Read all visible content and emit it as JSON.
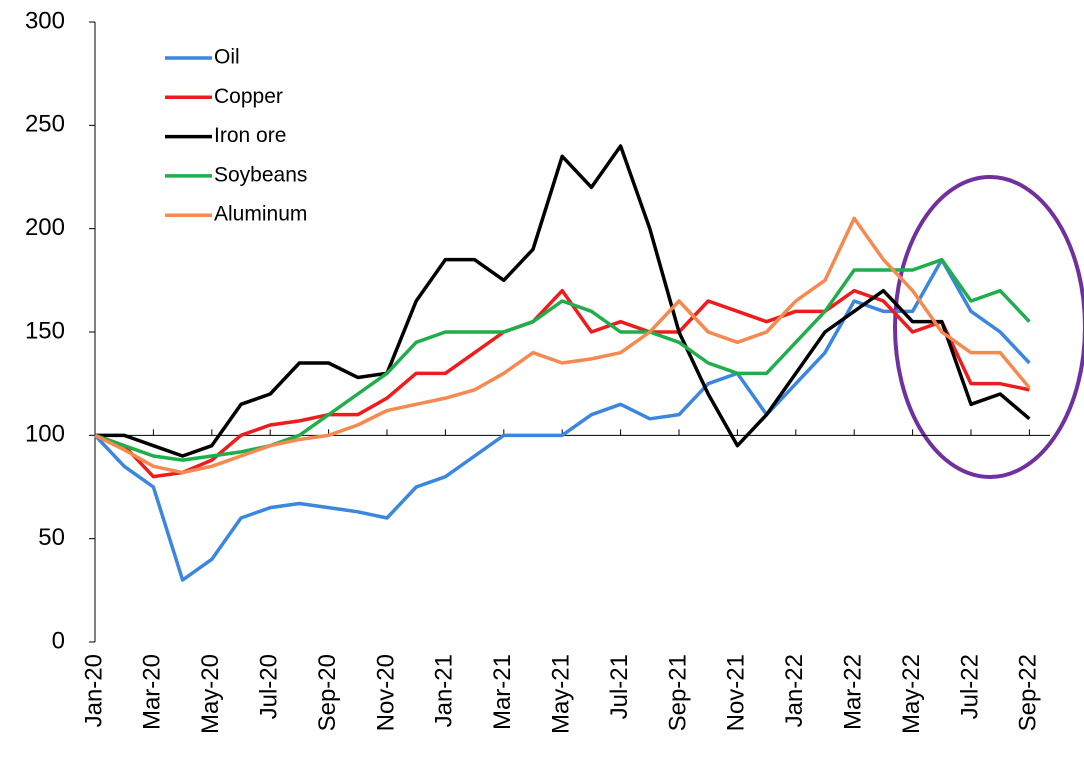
{
  "chart_data": {
    "type": "line",
    "categories": [
      "Jan-20",
      null,
      "Mar-20",
      null,
      "May-20",
      null,
      "Jul-20",
      null,
      "Sep-20",
      null,
      "Nov-20",
      null,
      "Jan-21",
      null,
      "Mar-21",
      null,
      "May-21",
      null,
      "Jul-21",
      null,
      "Sep-21",
      null,
      "Nov-21",
      null,
      "Jan-22",
      null,
      "Mar-22",
      null,
      "May-22",
      null,
      "Jul-22",
      null,
      "Sep-22"
    ],
    "series": [
      {
        "name": "Oil",
        "color": "#3a86e0",
        "values": [
          100,
          85,
          75,
          30,
          40,
          60,
          65,
          67,
          65,
          63,
          60,
          75,
          80,
          90,
          100,
          100,
          100,
          110,
          115,
          108,
          110,
          125,
          130,
          110,
          125,
          140,
          165,
          160,
          160,
          185,
          160,
          150,
          135
        ]
      },
      {
        "name": "Copper",
        "color": "#ee1c1c",
        "values": [
          100,
          95,
          80,
          82,
          88,
          100,
          105,
          107,
          110,
          110,
          118,
          130,
          130,
          140,
          150,
          155,
          170,
          150,
          155,
          150,
          150,
          165,
          160,
          155,
          160,
          160,
          170,
          165,
          150,
          155,
          125,
          125,
          122
        ]
      },
      {
        "name": "Iron ore",
        "color": "#000000",
        "values": [
          100,
          100,
          95,
          90,
          95,
          115,
          120,
          135,
          135,
          128,
          130,
          165,
          185,
          185,
          175,
          190,
          235,
          220,
          240,
          200,
          150,
          120,
          95,
          110,
          130,
          150,
          160,
          170,
          155,
          155,
          115,
          120,
          108
        ]
      },
      {
        "name": "Soybeans",
        "color": "#1fae4b",
        "values": [
          100,
          95,
          90,
          88,
          90,
          92,
          95,
          100,
          110,
          120,
          130,
          145,
          150,
          150,
          150,
          155,
          165,
          160,
          150,
          150,
          145,
          135,
          130,
          130,
          145,
          160,
          180,
          180,
          180,
          185,
          165,
          170,
          155
        ]
      },
      {
        "name": "Aluminum",
        "color": "#f5894f",
        "values": [
          100,
          93,
          85,
          82,
          85,
          90,
          95,
          98,
          100,
          105,
          112,
          115,
          118,
          122,
          130,
          140,
          135,
          137,
          140,
          150,
          165,
          150,
          145,
          150,
          165,
          175,
          205,
          185,
          170,
          150,
          140,
          140,
          123
        ]
      }
    ],
    "ylim": [
      0,
      300
    ],
    "yticks": [
      0,
      50,
      100,
      150,
      200,
      250,
      300
    ],
    "xaxis_crosses": 100,
    "grid": false,
    "legend": "top-left"
  }
}
